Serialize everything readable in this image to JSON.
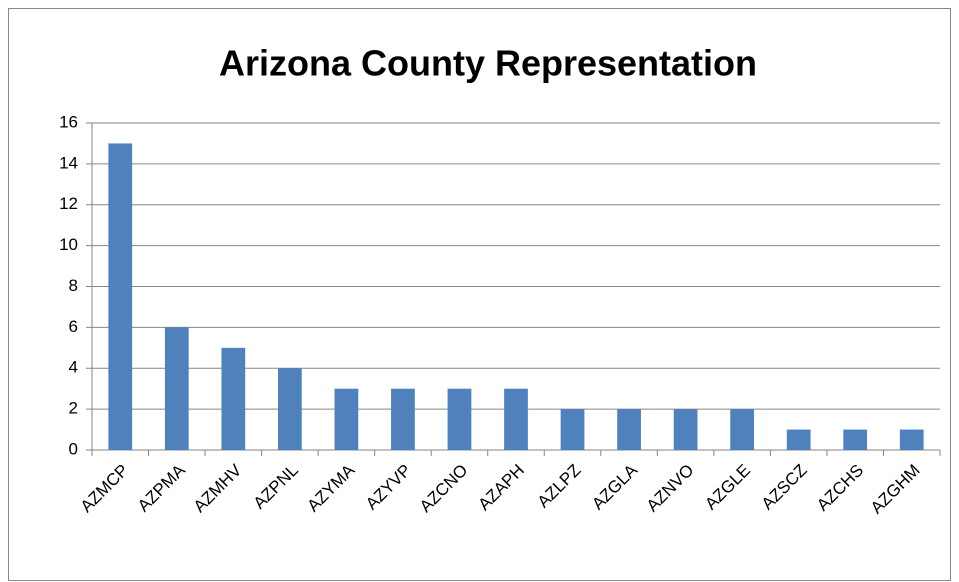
{
  "chart_data": {
    "type": "bar",
    "title": "Arizona County Representation",
    "categories": [
      "AZMCP",
      "AZPMA",
      "AZMHV",
      "AZPNL",
      "AZYMA",
      "AZYVP",
      "AZCNO",
      "AZAPH",
      "AZLPZ",
      "AZGLA",
      "AZNVO",
      "AZGLE",
      "AZSCZ",
      "AZCHS",
      "AZGHM"
    ],
    "values": [
      15,
      6,
      5,
      4,
      3,
      3,
      3,
      3,
      2,
      2,
      2,
      2,
      1,
      1,
      1
    ],
    "color": "#4f81bd",
    "ylim": [
      0,
      16
    ],
    "yticks": [
      0,
      2,
      4,
      6,
      8,
      10,
      12,
      14,
      16
    ],
    "grid": true
  }
}
